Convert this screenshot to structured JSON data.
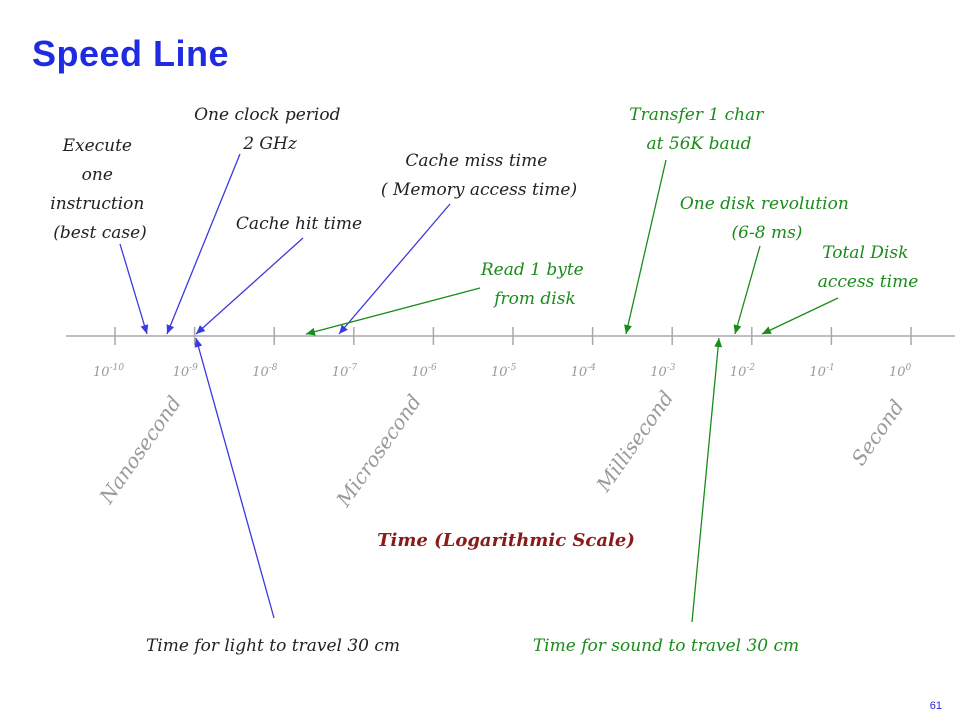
{
  "title": "Speed Line",
  "page_number": "61",
  "axis_title": "Time (Logarithmic Scale)",
  "colors": {
    "title": "#1f2be0",
    "blue_annotation": "#3a3ae0",
    "green_annotation": "#1a8c1a",
    "axis_title": "#8b1a1a",
    "axis": "#a8a8a8",
    "black_text": "#222222"
  },
  "ticks": [
    {
      "base": "10",
      "exp": "-10"
    },
    {
      "base": "10",
      "exp": "-9"
    },
    {
      "base": "10",
      "exp": "-8"
    },
    {
      "base": "10",
      "exp": "-7"
    },
    {
      "base": "10",
      "exp": "-6"
    },
    {
      "base": "10",
      "exp": "-5"
    },
    {
      "base": "10",
      "exp": "-4"
    },
    {
      "base": "10",
      "exp": "-3"
    },
    {
      "base": "10",
      "exp": "-2"
    },
    {
      "base": "10",
      "exp": "-1"
    },
    {
      "base": "10",
      "exp": "0"
    }
  ],
  "units": {
    "nanosecond": "Nanosecond",
    "microsecond": "Microsecond",
    "millisecond": "Millisecond",
    "second": "Second"
  },
  "annotations": {
    "execute_instruction": [
      "Execute",
      "one",
      "instruction",
      "(best case)"
    ],
    "clock_period": [
      "One clock period",
      "2 GHz"
    ],
    "cache_hit": [
      "Cache hit time"
    ],
    "cache_miss": [
      "Cache miss time",
      "( Memory access time)"
    ],
    "read_byte": [
      "Read 1 byte",
      "from disk"
    ],
    "transfer_char": [
      "Transfer 1 char",
      "at 56K baud"
    ],
    "disk_revolution": [
      "One disk revolution",
      "(6-8 ms)"
    ],
    "total_disk": [
      "Total Disk",
      "access time"
    ],
    "light_travel": [
      "Time for light to travel 30 cm"
    ],
    "sound_travel": [
      "Time for sound to travel 30 cm"
    ]
  }
}
